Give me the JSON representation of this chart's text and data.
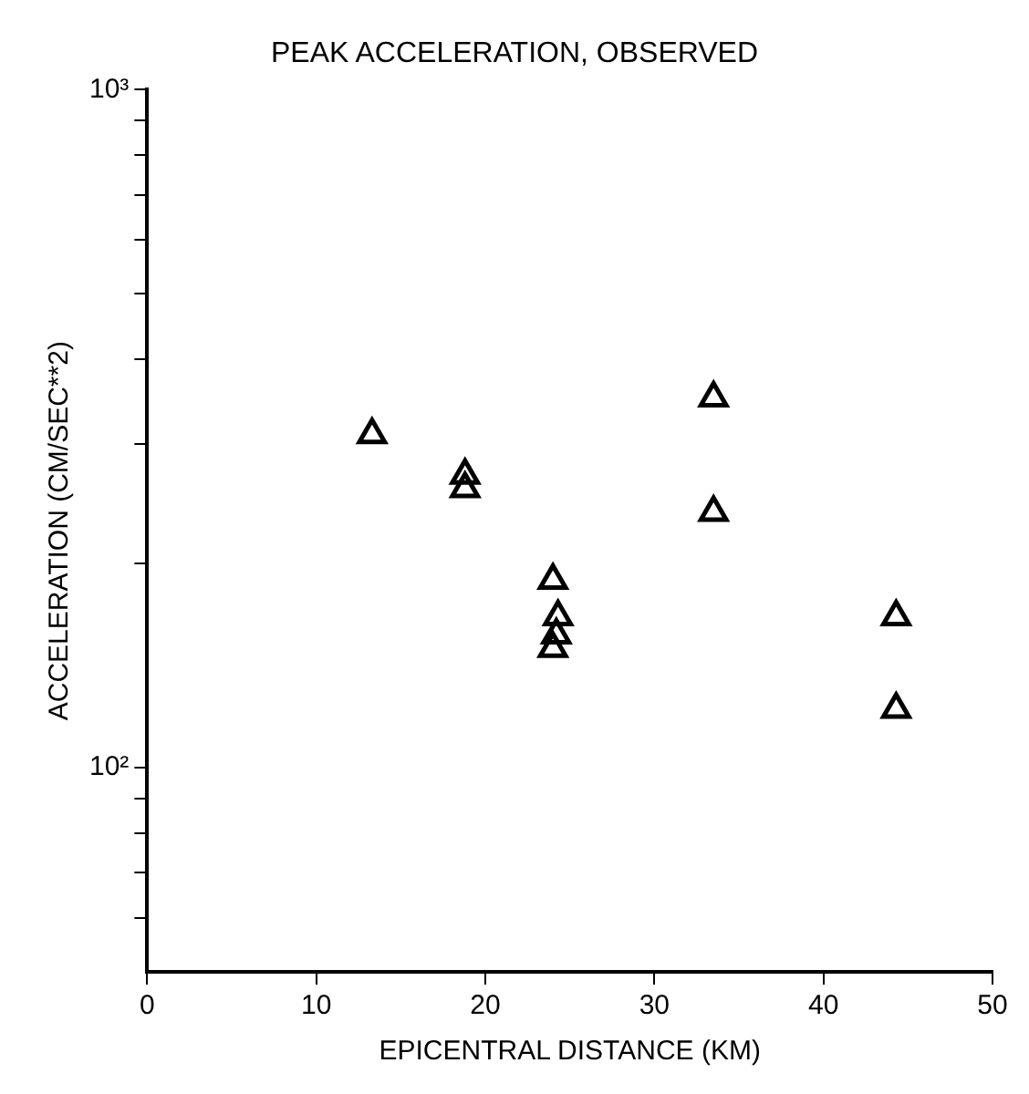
{
  "chart_data": {
    "type": "scatter",
    "title": "PEAK ACCELERATION, OBSERVED",
    "xlabel": "EPICENTRAL DISTANCE (KM)",
    "ylabel": "ACCELERATION (CM/SEC**2)",
    "log": "y",
    "grid": false,
    "legend": false,
    "marker": "triangle",
    "xlim": [
      0,
      50
    ],
    "xticks": [
      0,
      10,
      20,
      30,
      40,
      50
    ],
    "ylim": [
      50,
      1000
    ],
    "yticks": [
      {
        "value": 60,
        "label": null
      },
      {
        "value": 70,
        "label": null
      },
      {
        "value": 80,
        "label": null
      },
      {
        "value": 90,
        "label": null
      },
      {
        "value": 100,
        "label": "10²"
      },
      {
        "value": 200,
        "label": null
      },
      {
        "value": 300,
        "label": null
      },
      {
        "value": 400,
        "label": null
      },
      {
        "value": 500,
        "label": null
      },
      {
        "value": 600,
        "label": null
      },
      {
        "value": 700,
        "label": null
      },
      {
        "value": 800,
        "label": null
      },
      {
        "value": 900,
        "label": null
      },
      {
        "value": 1000,
        "label": "10³"
      }
    ],
    "series": [
      {
        "color": "#000000",
        "x": [
          13.3,
          18.8,
          18.8,
          33.5,
          33.5,
          24.0,
          24.3,
          24.2,
          24.0,
          44.3,
          44.3
        ],
        "values": [
          310,
          270,
          258,
          351,
          238,
          189,
          167,
          157,
          150,
          167,
          122
        ]
      }
    ]
  }
}
